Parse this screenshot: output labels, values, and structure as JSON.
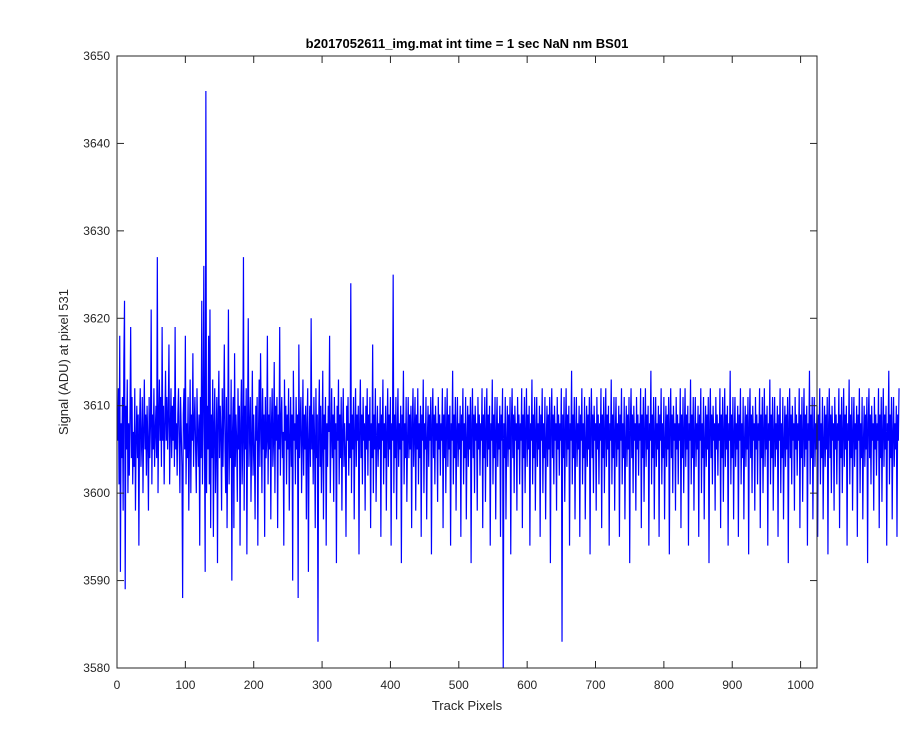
{
  "chart_data": {
    "type": "line",
    "title": "b2017052611_img.mat int time = 1 sec  NaN nm BS01",
    "xlabel": "Track Pixels",
    "ylabel": "Signal (ADU) at pixel 531",
    "xlim": [
      0,
      1024
    ],
    "ylim": [
      3580,
      3650
    ],
    "xticks": [
      0,
      100,
      200,
      300,
      400,
      500,
      600,
      700,
      800,
      900,
      1000
    ],
    "yticks": [
      3580,
      3590,
      3600,
      3610,
      3620,
      3630,
      3640,
      3650
    ],
    "grid": false,
    "legend": "none",
    "series": [
      {
        "color": "#0000ff",
        "x_start": 1,
        "x_step": 1,
        "length": 1024,
        "values": [
          3606,
          3612,
          3601,
          3618,
          3591,
          3608,
          3604,
          3611,
          3598,
          3615,
          3622,
          3589,
          3610,
          3605,
          3613,
          3600,
          3608,
          3602,
          3609,
          3619,
          3604,
          3611,
          3601,
          3607,
          3603,
          3612,
          3598,
          3606,
          3610,
          3604,
          3609,
          3594,
          3608,
          3612,
          3603,
          3606,
          3611,
          3600,
          3607,
          3613,
          3605,
          3609,
          3602,
          3610,
          3606,
          3598,
          3611,
          3604,
          3608,
          3621,
          3601,
          3609,
          3605,
          3612,
          3603,
          3607,
          3610,
          3604,
          3627,
          3600,
          3608,
          3613,
          3606,
          3611,
          3603,
          3619,
          3606,
          3610,
          3601,
          3608,
          3614,
          3606,
          3611,
          3605,
          3609,
          3617,
          3601,
          3607,
          3612,
          3604,
          3610,
          3606,
          3611,
          3603,
          3619,
          3605,
          3608,
          3602,
          3609,
          3612,
          3606,
          3600,
          3611,
          3607,
          3603,
          3588,
          3609,
          3612,
          3605,
          3618,
          3601,
          3608,
          3604,
          3611,
          3598,
          3606,
          3613,
          3600,
          3609,
          3606,
          3616,
          3603,
          3608,
          3611,
          3605,
          3600,
          3612,
          3607,
          3603,
          3609,
          3594,
          3611,
          3604,
          3622,
          3601,
          3608,
          3626,
          3606,
          3591,
          3646,
          3600,
          3610,
          3605,
          3618,
          3601,
          3621,
          3596,
          3609,
          3604,
          3613,
          3595,
          3608,
          3612,
          3600,
          3606,
          3611,
          3592,
          3609,
          3614,
          3604,
          3610,
          3607,
          3598,
          3612,
          3603,
          3609,
          3617,
          3605,
          3600,
          3611,
          3596,
          3606,
          3621,
          3601,
          3609,
          3604,
          3613,
          3590,
          3607,
          3611,
          3596,
          3616,
          3603,
          3609,
          3606,
          3599,
          3612,
          3605,
          3610,
          3594,
          3608,
          3613,
          3601,
          3606,
          3627,
          3598,
          3610,
          3605,
          3612,
          3593,
          3608,
          3620,
          3603,
          3607,
          3611,
          3599,
          3606,
          3614,
          3602,
          3609,
          3605,
          3597,
          3610,
          3606,
          3611,
          3594,
          3607,
          3613,
          3603,
          3616,
          3608,
          3600,
          3612,
          3605,
          3609,
          3595,
          3611,
          3604,
          3606,
          3618,
          3601,
          3609,
          3605,
          3611,
          3597,
          3608,
          3612,
          3603,
          3606,
          3615,
          3600,
          3610,
          3606,
          3611,
          3596,
          3609,
          3605,
          3619,
          3602,
          3608,
          3611,
          3604,
          3607,
          3594,
          3613,
          3606,
          3610,
          3601,
          3609,
          3605,
          3612,
          3598,
          3606,
          3611,
          3603,
          3609,
          3590,
          3614,
          3606,
          3608,
          3601,
          3611,
          3605,
          3609,
          3588,
          3617,
          3604,
          3608,
          3611,
          3600,
          3606,
          3613,
          3602,
          3609,
          3605,
          3610,
          3597,
          3608,
          3612,
          3591,
          3606,
          3610,
          3603,
          3620,
          3605,
          3609,
          3601,
          3611,
          3606,
          3596,
          3612,
          3604,
          3609,
          3583,
          3608,
          3613,
          3603,
          3610,
          3600,
          3606,
          3614,
          3597,
          3609,
          3605,
          3611,
          3594,
          3608,
          3603,
          3610,
          3607,
          3618,
          3600,
          3606,
          3612,
          3604,
          3609,
          3599,
          3611,
          3605,
          3608,
          3592,
          3610,
          3606,
          3613,
          3601,
          3609,
          3604,
          3611,
          3598,
          3607,
          3612,
          3603,
          3608,
          3605,
          3595,
          3610,
          3606,
          3611,
          3602,
          3608,
          3604,
          3624,
          3600,
          3609,
          3605,
          3611,
          3597,
          3607,
          3612,
          3603,
          3609,
          3606,
          3610,
          3593,
          3608,
          3613,
          3604,
          3609,
          3601,
          3611,
          3606,
          3608,
          3598,
          3610,
          3605,
          3612,
          3602,
          3609,
          3606,
          3611,
          3596,
          3608,
          3604,
          3617,
          3600,
          3609,
          3605,
          3612,
          3599,
          3606,
          3610,
          3603,
          3608,
          3605,
          3611,
          3595,
          3609,
          3606,
          3613,
          3601,
          3608,
          3604,
          3610,
          3598,
          3607,
          3612,
          3603,
          3609,
          3605,
          3611,
          3594,
          3608,
          3606,
          3625,
          3600,
          3609,
          3604,
          3611,
          3597,
          3607,
          3612,
          3603,
          3608,
          3605,
          3610,
          3592,
          3609,
          3606,
          3614,
          3601,
          3608,
          3604,
          3611,
          3599,
          3606,
          3611,
          3604,
          3609,
          3605,
          3610,
          3596,
          3608,
          3612,
          3603,
          3607,
          3611,
          3598,
          3609,
          3605,
          3612,
          3601,
          3608,
          3604,
          3610,
          3595,
          3609,
          3606,
          3613,
          3600,
          3608,
          3605,
          3611,
          3597,
          3606,
          3610,
          3603,
          3609,
          3606,
          3611,
          3593,
          3608,
          3612,
          3604,
          3609,
          3601,
          3610,
          3606,
          3608,
          3599,
          3611,
          3605,
          3609,
          3602,
          3608,
          3606,
          3612,
          3596,
          3609,
          3604,
          3611,
          3600,
          3607,
          3612,
          3603,
          3609,
          3605,
          3610,
          3594,
          3608,
          3606,
          3614,
          3601,
          3609,
          3604,
          3611,
          3598,
          3607,
          3611,
          3603,
          3608,
          3605,
          3610,
          3595,
          3609,
          3606,
          3612,
          3601,
          3608,
          3604,
          3611,
          3597,
          3606,
          3610,
          3603,
          3609,
          3605,
          3611,
          3592,
          3608,
          3612,
          3604,
          3609,
          3600,
          3610,
          3606,
          3608,
          3598,
          3611,
          3605,
          3609,
          3602,
          3608,
          3606,
          3612,
          3596,
          3609,
          3604,
          3611,
          3599,
          3607,
          3612,
          3603,
          3609,
          3605,
          3610,
          3594,
          3608,
          3606,
          3613,
          3601,
          3609,
          3604,
          3611,
          3597,
          3607,
          3611,
          3603,
          3608,
          3605,
          3610,
          3595,
          3609,
          3606,
          3612,
          3580,
          3608,
          3604,
          3611,
          3597,
          3606,
          3610,
          3603,
          3609,
          3605,
          3611,
          3593,
          3608,
          3612,
          3604,
          3609,
          3600,
          3610,
          3606,
          3608,
          3598,
          3611,
          3605,
          3609,
          3601,
          3608,
          3606,
          3612,
          3596,
          3609,
          3604,
          3611,
          3600,
          3607,
          3612,
          3603,
          3609,
          3605,
          3610,
          3594,
          3608,
          3606,
          3613,
          3601,
          3609,
          3604,
          3611,
          3598,
          3607,
          3611,
          3603,
          3608,
          3605,
          3610,
          3595,
          3609,
          3606,
          3612,
          3600,
          3608,
          3604,
          3611,
          3597,
          3606,
          3610,
          3603,
          3609,
          3605,
          3611,
          3592,
          3608,
          3612,
          3604,
          3609,
          3601,
          3610,
          3606,
          3608,
          3598,
          3611,
          3605,
          3609,
          3602,
          3608,
          3606,
          3612,
          3583,
          3609,
          3604,
          3611,
          3599,
          3607,
          3612,
          3603,
          3609,
          3605,
          3610,
          3594,
          3608,
          3606,
          3614,
          3601,
          3609,
          3604,
          3611,
          3597,
          3607,
          3611,
          3603,
          3608,
          3605,
          3610,
          3595,
          3609,
          3606,
          3612,
          3601,
          3608,
          3604,
          3611,
          3597,
          3606,
          3610,
          3603,
          3609,
          3605,
          3611,
          3593,
          3608,
          3612,
          3604,
          3609,
          3600,
          3610,
          3606,
          3608,
          3598,
          3611,
          3605,
          3609,
          3601,
          3608,
          3606,
          3612,
          3596,
          3609,
          3604,
          3611,
          3600,
          3607,
          3612,
          3603,
          3609,
          3605,
          3610,
          3594,
          3608,
          3606,
          3613,
          3601,
          3609,
          3604,
          3611,
          3598,
          3607,
          3611,
          3603,
          3608,
          3605,
          3610,
          3595,
          3609,
          3606,
          3612,
          3601,
          3608,
          3604,
          3611,
          3597,
          3606,
          3610,
          3603,
          3609,
          3605,
          3611,
          3592,
          3608,
          3612,
          3604,
          3609,
          3600,
          3610,
          3606,
          3608,
          3598,
          3611,
          3605,
          3609,
          3602,
          3608,
          3606,
          3612,
          3596,
          3609,
          3604,
          3611,
          3599,
          3607,
          3612,
          3603,
          3609,
          3605,
          3610,
          3594,
          3608,
          3606,
          3614,
          3601,
          3609,
          3604,
          3611,
          3597,
          3607,
          3611,
          3603,
          3608,
          3605,
          3610,
          3595,
          3609,
          3606,
          3612,
          3601,
          3608,
          3604,
          3611,
          3597,
          3606,
          3610,
          3603,
          3609,
          3605,
          3611,
          3593,
          3608,
          3612,
          3604,
          3609,
          3600,
          3610,
          3606,
          3608,
          3598,
          3611,
          3605,
          3609,
          3601,
          3608,
          3606,
          3612,
          3596,
          3609,
          3604,
          3611,
          3600,
          3607,
          3612,
          3603,
          3609,
          3605,
          3610,
          3594,
          3608,
          3606,
          3613,
          3601,
          3609,
          3604,
          3611,
          3598,
          3607,
          3611,
          3603,
          3608,
          3605,
          3610,
          3595,
          3609,
          3606,
          3612,
          3600,
          3608,
          3604,
          3611,
          3597,
          3606,
          3610,
          3603,
          3609,
          3605,
          3611,
          3592,
          3608,
          3612,
          3604,
          3609,
          3601,
          3610,
          3606,
          3608,
          3598,
          3611,
          3605,
          3609,
          3602,
          3608,
          3606,
          3612,
          3596,
          3609,
          3604,
          3611,
          3599,
          3607,
          3612,
          3603,
          3609,
          3605,
          3610,
          3594,
          3608,
          3606,
          3614,
          3601,
          3609,
          3604,
          3611,
          3597,
          3607,
          3611,
          3603,
          3608,
          3605,
          3610,
          3595,
          3609,
          3606,
          3612,
          3601,
          3608,
          3604,
          3611,
          3597,
          3606,
          3610,
          3603,
          3609,
          3605,
          3611,
          3593,
          3608,
          3612,
          3604,
          3609,
          3600,
          3610,
          3606,
          3608,
          3598,
          3611,
          3605,
          3609,
          3601,
          3608,
          3606,
          3612,
          3596,
          3609,
          3604,
          3611,
          3600,
          3607,
          3612,
          3603,
          3609,
          3605,
          3610,
          3594,
          3608,
          3606,
          3613,
          3601,
          3609,
          3604,
          3611,
          3598,
          3607,
          3611,
          3603,
          3608,
          3605,
          3610,
          3595,
          3609,
          3606,
          3612,
          3600,
          3608,
          3604,
          3611,
          3597,
          3606,
          3610,
          3603,
          3609,
          3605,
          3611,
          3592,
          3608,
          3612,
          3604,
          3609,
          3601,
          3610,
          3606,
          3608,
          3598,
          3611,
          3605,
          3609,
          3602,
          3608,
          3606,
          3612,
          3596,
          3609,
          3604,
          3611,
          3599,
          3607,
          3612,
          3603,
          3609,
          3605,
          3610,
          3594,
          3608,
          3606,
          3614,
          3601,
          3609,
          3604,
          3611,
          3597,
          3607,
          3611,
          3603,
          3608,
          3605,
          3610,
          3595,
          3609,
          3606,
          3612,
          3601,
          3608,
          3604,
          3611,
          3597,
          3606,
          3610,
          3603,
          3609,
          3605,
          3611,
          3593,
          3608,
          3612,
          3604,
          3609,
          3600,
          3610,
          3606,
          3608,
          3598,
          3611,
          3605,
          3609,
          3601,
          3608,
          3606,
          3612,
          3596,
          3609,
          3604,
          3611,
          3600,
          3607,
          3612,
          3603,
          3609,
          3605,
          3610,
          3594,
          3608,
          3606,
          3613,
          3601,
          3609,
          3604,
          3611,
          3598,
          3607,
          3611,
          3603,
          3608,
          3605,
          3610,
          3595,
          3609,
          3606,
          3612,
          3600,
          3608,
          3604,
          3611,
          3597,
          3606,
          3610,
          3603,
          3609,
          3605,
          3611,
          3592,
          3608,
          3612,
          3604,
          3609,
          3601,
          3610,
          3606,
          3608,
          3598,
          3611,
          3605,
          3609,
          3602,
          3608,
          3606,
          3612,
          3596,
          3609,
          3604,
          3611,
          3599,
          3607,
          3612,
          3603,
          3609,
          3605,
          3610,
          3594,
          3608,
          3606,
          3614,
          3601,
          3609,
          3604,
          3611,
          3597,
          3607,
          3611,
          3603,
          3608,
          3605,
          3610,
          3595,
          3609,
          3606,
          3612
        ]
      }
    ]
  }
}
